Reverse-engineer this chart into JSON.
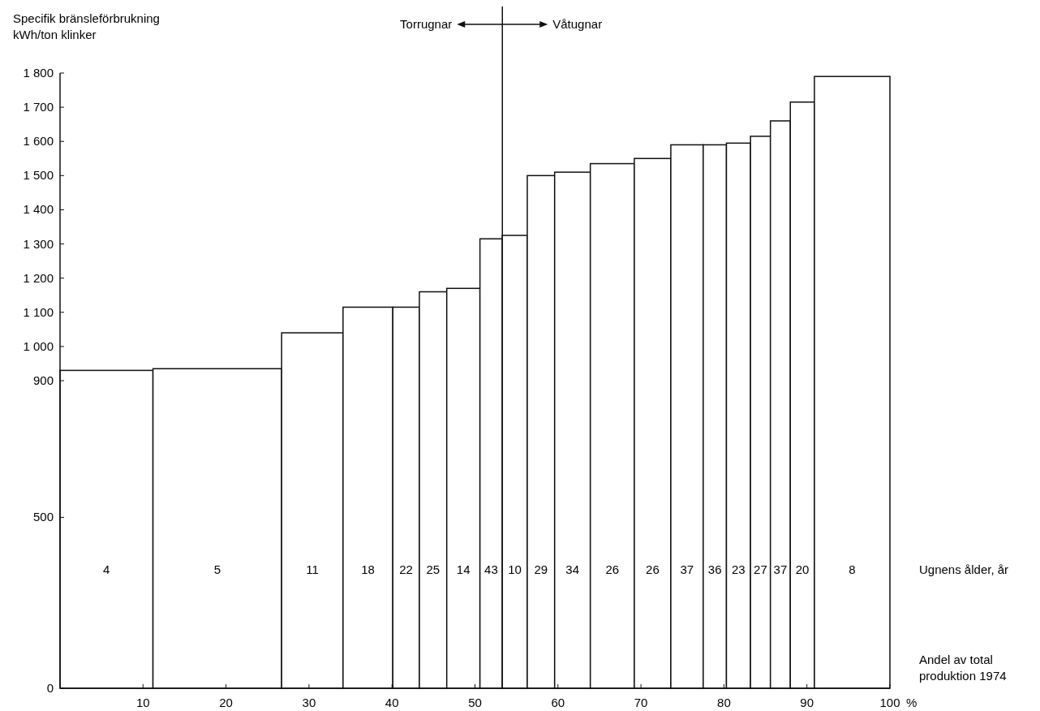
{
  "chart_data": {
    "type": "histogram",
    "ylabel": "Specifik bränsleförbrukning\nkWh/ton klinker",
    "xlabel": "Andel av total\nproduktion 1974\n%",
    "bins": [
      0,
      11.2,
      26.7,
      34.1,
      40.1,
      43.3,
      46.6,
      50.6,
      53.3,
      56.3,
      59.6,
      63.9,
      69.2,
      73.6,
      77.5,
      80.3,
      83.2,
      85.6,
      88.0,
      90.9,
      100
    ],
    "values": [
      930,
      935,
      1040,
      1115,
      1115,
      1160,
      1170,
      1315,
      1325,
      1500,
      1510,
      1535,
      1550,
      1590,
      1590,
      1595,
      1615,
      1660,
      1715,
      1790
    ],
    "color": "#ffffff",
    "xlim": [
      0,
      100
    ],
    "xticks": [
      10,
      20,
      30,
      40,
      50,
      60,
      70,
      80,
      90,
      100
    ],
    "ylim": [
      0,
      1800
    ],
    "yticks": [
      0,
      500,
      900,
      {
        "value": 1000,
        "label": "1 000"
      },
      {
        "value": 1100,
        "label": "1 100"
      },
      {
        "value": 1200,
        "label": "1 200"
      },
      {
        "value": 1300,
        "label": "1 300"
      },
      {
        "value": 1400,
        "label": "1 400"
      },
      {
        "value": 1500,
        "label": "1 500"
      },
      {
        "value": 1600,
        "label": "1 600"
      },
      {
        "value": 1700,
        "label": "1 700"
      },
      {
        "value": 1800,
        "label": "1 800"
      }
    ],
    "grid": false,
    "ref_lines": [
      {
        "axis": "x",
        "value": 53.3,
        "label": null
      }
    ],
    "annotations": [
      "Torrugnar",
      "Våtugnar",
      "Ugnens ålder, år",
      "4",
      "5",
      "11",
      "18",
      "22",
      "25",
      "14",
      "43",
      "10",
      "29",
      "34",
      "26",
      "26",
      "37",
      "36",
      "23",
      "27",
      "37",
      "20",
      "8"
    ]
  }
}
